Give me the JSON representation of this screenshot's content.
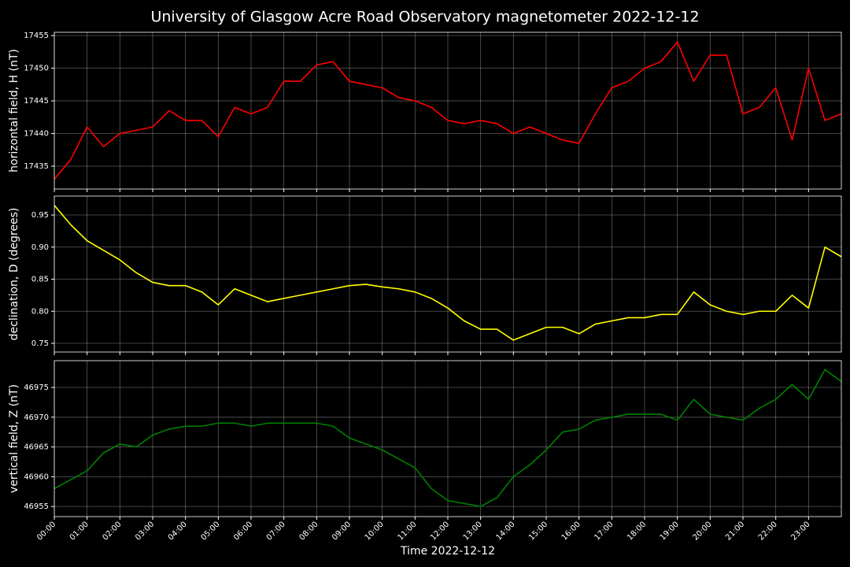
{
  "title": "University of Glasgow Acre Road Observatory magnetometer 2022-12-12",
  "chart_data": [
    {
      "type": "line",
      "ylabel": "horizontal field, H (nT)",
      "color": "#ff0000",
      "grid": true,
      "x": [
        0,
        0.5,
        1,
        1.5,
        2,
        2.5,
        3,
        3.5,
        4,
        4.5,
        5,
        5.5,
        6,
        6.5,
        7,
        7.5,
        8,
        8.5,
        9,
        9.5,
        10,
        10.5,
        11,
        11.5,
        12,
        12.5,
        13,
        13.5,
        14,
        14.5,
        15,
        15.5,
        16,
        16.5,
        17,
        17.5,
        18,
        18.5,
        19,
        19.5,
        20,
        20.5,
        21,
        21.5,
        22,
        22.5,
        23,
        23.5,
        24
      ],
      "values": [
        17433,
        17436,
        17441,
        17438,
        17440,
        17440.5,
        17441,
        17443.5,
        17442,
        17442,
        17439.5,
        17444,
        17443,
        17444,
        17448,
        17448,
        17450.5,
        17451,
        17448,
        17447.5,
        17447,
        17445.5,
        17445,
        17444,
        17442,
        17441.5,
        17442,
        17441.5,
        17440,
        17441,
        17440,
        17439,
        17438.5,
        17443,
        17447,
        17448,
        17450,
        17451,
        17454,
        17448,
        17452,
        17452,
        17443,
        17444,
        17447,
        17439,
        17450,
        17442,
        17443
      ],
      "xlim": [
        0,
        24
      ],
      "ylim": [
        17431.5,
        17455.5
      ],
      "yticks": [
        17435,
        17440,
        17445,
        17450,
        17455
      ]
    },
    {
      "type": "line",
      "ylabel": "declination, D (degrees)",
      "color": "#ffff00",
      "grid": true,
      "x": [
        0,
        0.5,
        1,
        1.5,
        2,
        2.5,
        3,
        3.5,
        4,
        4.5,
        5,
        5.5,
        6,
        6.5,
        7,
        7.5,
        8,
        8.5,
        9,
        9.5,
        10,
        10.5,
        11,
        11.5,
        12,
        12.5,
        13,
        13.5,
        14,
        14.5,
        15,
        15.5,
        16,
        16.5,
        17,
        17.5,
        18,
        18.5,
        19,
        19.5,
        20,
        20.5,
        21,
        21.5,
        22,
        22.5,
        23,
        23.5,
        24
      ],
      "values": [
        0.965,
        0.935,
        0.91,
        0.895,
        0.88,
        0.86,
        0.845,
        0.84,
        0.84,
        0.83,
        0.81,
        0.835,
        0.825,
        0.815,
        0.82,
        0.825,
        0.83,
        0.835,
        0.84,
        0.842,
        0.838,
        0.835,
        0.83,
        0.82,
        0.805,
        0.785,
        0.772,
        0.772,
        0.755,
        0.765,
        0.775,
        0.775,
        0.765,
        0.78,
        0.785,
        0.79,
        0.79,
        0.795,
        0.795,
        0.83,
        0.81,
        0.8,
        0.795,
        0.8,
        0.8,
        0.825,
        0.805,
        0.9,
        0.885
      ],
      "xlim": [
        0,
        24
      ],
      "ylim": [
        0.7365,
        0.9795
      ],
      "yticks": [
        0.75,
        {
          "value": 0.8,
          "label": "0.80"
        },
        0.85,
        {
          "value": 0.9,
          "label": "0.90"
        },
        0.95
      ]
    },
    {
      "type": "line",
      "ylabel": "vertical field, Z (nT)",
      "xlabel": "Time 2022-12-12",
      "color": "#008000",
      "grid": true,
      "x": [
        0,
        0.5,
        1,
        1.5,
        2,
        2.5,
        3,
        3.5,
        4,
        4.5,
        5,
        5.5,
        6,
        6.5,
        7,
        7.5,
        8,
        8.5,
        9,
        9.5,
        10,
        10.5,
        11,
        11.5,
        12,
        12.5,
        13,
        13.5,
        14,
        14.5,
        15,
        15.5,
        16,
        16.5,
        17,
        17.5,
        18,
        18.5,
        19,
        19.5,
        20,
        20.5,
        21,
        21.5,
        22,
        22.5,
        23,
        23.5,
        24
      ],
      "values": [
        46958,
        46959.5,
        46961,
        46964,
        46965.5,
        46965,
        46967,
        46968,
        46968.5,
        46968.5,
        46969,
        46969,
        46968.5,
        46969,
        46969,
        46969,
        46969,
        46968.5,
        46966.5,
        46965.5,
        46964.5,
        46963,
        46961.5,
        46958,
        46956,
        46955.5,
        46955,
        46956.5,
        46960,
        46962,
        46964.5,
        46967.5,
        46968,
        46969.5,
        46970,
        46970.5,
        46970.5,
        46970.5,
        46969.5,
        46973,
        46970.5,
        46970,
        46969.5,
        46971.5,
        46973,
        46975.5,
        46973,
        46978,
        46976
      ],
      "xlim": [
        0,
        24
      ],
      "ylim": [
        46953.3,
        46979.5
      ],
      "yticks": [
        46955,
        46960,
        46965,
        46970,
        46975
      ],
      "xticks": [
        {
          "value": 0,
          "label": "00:00"
        },
        {
          "value": 1,
          "label": "01:00"
        },
        {
          "value": 2,
          "label": "02:00"
        },
        {
          "value": 3,
          "label": "03:00"
        },
        {
          "value": 4,
          "label": "04:00"
        },
        {
          "value": 5,
          "label": "05:00"
        },
        {
          "value": 6,
          "label": "06:00"
        },
        {
          "value": 7,
          "label": "07:00"
        },
        {
          "value": 8,
          "label": "08:00"
        },
        {
          "value": 9,
          "label": "09:00"
        },
        {
          "value": 10,
          "label": "10:00"
        },
        {
          "value": 11,
          "label": "11:00"
        },
        {
          "value": 12,
          "label": "12:00"
        },
        {
          "value": 13,
          "label": "13:00"
        },
        {
          "value": 14,
          "label": "14:00"
        },
        {
          "value": 15,
          "label": "15:00"
        },
        {
          "value": 16,
          "label": "16:00"
        },
        {
          "value": 17,
          "label": "17:00"
        },
        {
          "value": 18,
          "label": "18:00"
        },
        {
          "value": 19,
          "label": "19:00"
        },
        {
          "value": 20,
          "label": "20:00"
        },
        {
          "value": 21,
          "label": "21:00"
        },
        {
          "value": 22,
          "label": "22:00"
        },
        {
          "value": 23,
          "label": "23:00"
        }
      ]
    }
  ]
}
